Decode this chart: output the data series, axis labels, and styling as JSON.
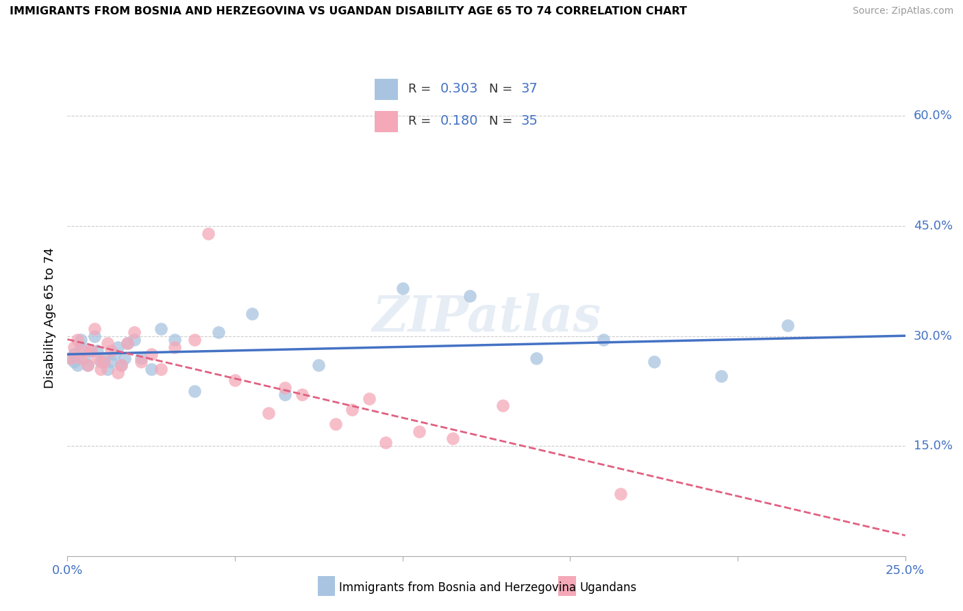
{
  "title": "IMMIGRANTS FROM BOSNIA AND HERZEGOVINA VS UGANDAN DISABILITY AGE 65 TO 74 CORRELATION CHART",
  "source": "Source: ZipAtlas.com",
  "ylabel": "Disability Age 65 to 74",
  "xlim": [
    0.0,
    0.25
  ],
  "ylim": [
    0.0,
    0.65
  ],
  "xticks": [
    0.0,
    0.05,
    0.1,
    0.15,
    0.2,
    0.25
  ],
  "yticks": [
    0.0,
    0.15,
    0.3,
    0.45,
    0.6
  ],
  "blue_color": "#a8c4e0",
  "pink_color": "#f4a8b8",
  "blue_line_color": "#4472c4",
  "pink_line_color": "#e06080",
  "tick_label_color": "#4472c4",
  "watermark": "ZIPatlas",
  "blue_x": [
    0.001,
    0.002,
    0.002,
    0.003,
    0.004,
    0.004,
    0.005,
    0.006,
    0.007,
    0.008,
    0.009,
    0.01,
    0.011,
    0.012,
    0.013,
    0.014,
    0.015,
    0.016,
    0.017,
    0.018,
    0.02,
    0.022,
    0.025,
    0.028,
    0.032,
    0.038,
    0.045,
    0.055,
    0.065,
    0.075,
    0.1,
    0.12,
    0.14,
    0.16,
    0.175,
    0.195,
    0.215
  ],
  "blue_y": [
    0.27,
    0.265,
    0.275,
    0.26,
    0.285,
    0.295,
    0.27,
    0.26,
    0.28,
    0.3,
    0.28,
    0.265,
    0.27,
    0.255,
    0.265,
    0.275,
    0.285,
    0.26,
    0.27,
    0.29,
    0.295,
    0.27,
    0.255,
    0.31,
    0.295,
    0.225,
    0.305,
    0.33,
    0.22,
    0.26,
    0.365,
    0.355,
    0.27,
    0.295,
    0.265,
    0.245,
    0.315
  ],
  "pink_x": [
    0.001,
    0.002,
    0.003,
    0.004,
    0.005,
    0.006,
    0.007,
    0.008,
    0.009,
    0.01,
    0.011,
    0.012,
    0.013,
    0.015,
    0.016,
    0.018,
    0.02,
    0.022,
    0.025,
    0.028,
    0.032,
    0.038,
    0.042,
    0.05,
    0.06,
    0.065,
    0.07,
    0.08,
    0.085,
    0.09,
    0.095,
    0.105,
    0.115,
    0.13,
    0.165
  ],
  "pink_y": [
    0.27,
    0.285,
    0.295,
    0.27,
    0.28,
    0.26,
    0.28,
    0.31,
    0.27,
    0.255,
    0.265,
    0.29,
    0.28,
    0.25,
    0.26,
    0.29,
    0.305,
    0.265,
    0.275,
    0.255,
    0.285,
    0.295,
    0.44,
    0.24,
    0.195,
    0.23,
    0.22,
    0.18,
    0.2,
    0.215,
    0.155,
    0.17,
    0.16,
    0.205,
    0.085
  ]
}
